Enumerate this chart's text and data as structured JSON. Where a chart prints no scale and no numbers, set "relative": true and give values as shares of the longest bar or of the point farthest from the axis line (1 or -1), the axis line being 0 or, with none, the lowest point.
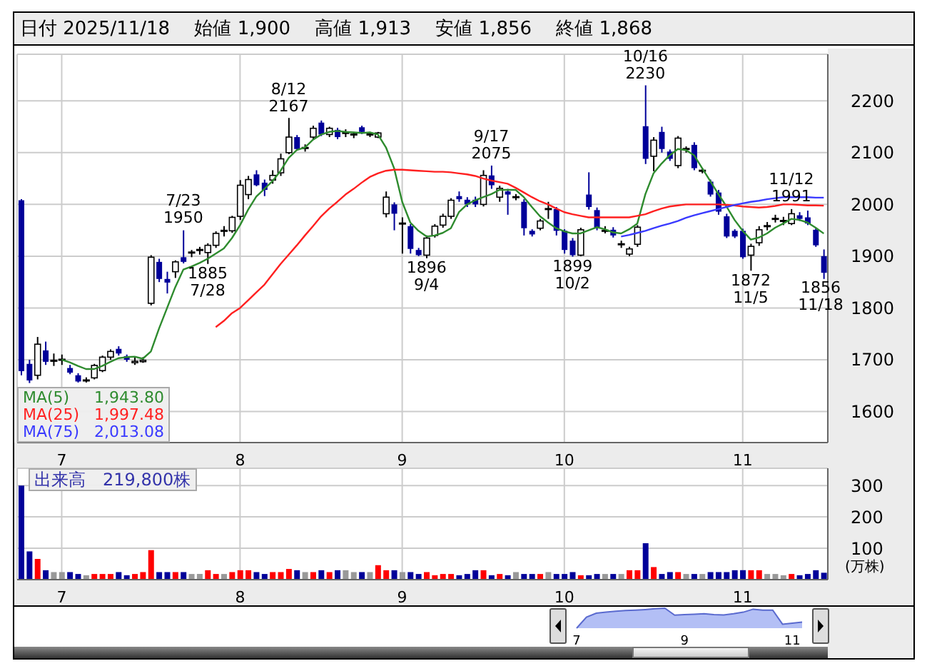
{
  "chart_data": [
    {
      "type": "candlestick",
      "title": "日付 2025/11/18　 始値 1,900　 高値 1,913　 安値 1,856　 終値 1,868",
      "colors": [
        "#000099",
        "#000099",
        "#ffffff",
        "#000099",
        "#000000",
        "#000000",
        "#000099",
        "#000099",
        "#000000",
        "#ffffff",
        "#ffffff",
        "#ffffff",
        "#000099",
        "#000099",
        "#ffffff",
        "#ffffff",
        "#ffffff",
        "#000099",
        "#000099",
        "#ffffff",
        "#000099",
        "#000000",
        "#000000",
        "#ffffff",
        "#ffffff",
        "#000000",
        "#ffffff",
        "#ffffff",
        "#ffffff",
        "#000099",
        "#000099",
        "#ffffff",
        "#ffffff",
        "#ffffff",
        "#000099",
        "#000000",
        "#ffffff",
        "#000099",
        "#ffffff",
        "#000099",
        "#000000",
        "#000000",
        "#000099",
        "#000000",
        "#ffffff",
        "#ffffff",
        "#000099",
        "#000000",
        "#000099",
        "#000099",
        "#ffffff",
        "#ffffff",
        "#ffffff",
        "#ffffff",
        "#000099",
        "#000099",
        "#000099",
        "#ffffff",
        "#000099",
        "#ffffff",
        "#000099",
        "#000000",
        "#000099",
        "#000099",
        "#ffffff",
        "#000000",
        "#000099",
        "#000099",
        "#000099",
        "#ffffff",
        "#000099",
        "#000099",
        "#000000",
        "#000099",
        "#000000",
        "#ffffff",
        "#ffffff",
        "#000099",
        "#ffffff",
        "#000099",
        "#000099",
        "#ffffff",
        "#000000",
        "#000099",
        "#000000",
        "#000099",
        "#000099",
        "#000099",
        "#000099",
        "#000099",
        "#ffffff",
        "#ffffff",
        "#000000",
        "#000000",
        "#000000",
        "#ffffff",
        "#000099",
        "#000099",
        "#000099",
        "#000099"
      ],
      "categories": [
        null,
        null,
        null,
        null,
        null,
        "7",
        null,
        null,
        null,
        null,
        null,
        null,
        null,
        null,
        null,
        null,
        null,
        null,
        null,
        null,
        null,
        null,
        null,
        null,
        null,
        null,
        null,
        "8",
        null,
        null,
        null,
        null,
        null,
        null,
        null,
        null,
        null,
        null,
        null,
        null,
        null,
        null,
        null,
        null,
        null,
        null,
        null,
        "9",
        null,
        null,
        null,
        null,
        null,
        null,
        null,
        null,
        null,
        null,
        null,
        null,
        null,
        null,
        null,
        null,
        null,
        null,
        null,
        "10",
        null,
        null,
        null,
        null,
        null,
        null,
        null,
        null,
        null,
        null,
        null,
        null,
        null,
        null,
        null,
        null,
        null,
        null,
        null,
        null,
        null,
        "11",
        null,
        null,
        null,
        null,
        null,
        null,
        null,
        null,
        null,
        null
      ],
      "ohlc": [
        [
          2008,
          2010,
          1670,
          1678
        ],
        [
          1692,
          1700,
          1655,
          1660
        ],
        [
          1670,
          1744,
          1662,
          1730
        ],
        [
          1718,
          1735,
          1690,
          1696
        ],
        [
          1698,
          1712,
          1688,
          1698
        ],
        [
          1700,
          1710,
          1690,
          1700
        ],
        [
          1684,
          1690,
          1672,
          1675
        ],
        [
          1670,
          1674,
          1656,
          1658
        ],
        [
          1660,
          1666,
          1656,
          1660
        ],
        [
          1665,
          1692,
          1662,
          1689
        ],
        [
          1679,
          1708,
          1676,
          1705
        ],
        [
          1705,
          1720,
          1700,
          1716
        ],
        [
          1721,
          1726,
          1708,
          1712
        ],
        [
          1707,
          1710,
          1696,
          1700
        ],
        [
          1696,
          1704,
          1690,
          1697
        ],
        [
          1698,
          1705,
          1694,
          1699
        ],
        [
          1809,
          1902,
          1805,
          1898
        ],
        [
          1889,
          1895,
          1850,
          1856
        ],
        [
          1856,
          1870,
          1828,
          1849
        ],
        [
          1870,
          1892,
          1858,
          1889
        ],
        [
          1898,
          1950,
          1886,
          1889
        ],
        [
          1907,
          1912,
          1898,
          1907
        ],
        [
          1912,
          1918,
          1903,
          1912
        ],
        [
          1907,
          1925,
          1885,
          1921
        ],
        [
          1921,
          1948,
          1916,
          1944
        ],
        [
          1949,
          1958,
          1938,
          1949
        ],
        [
          1949,
          1978,
          1945,
          1975
        ],
        [
          1977,
          2047,
          1970,
          2037
        ],
        [
          2019,
          2055,
          2010,
          2048
        ],
        [
          2058,
          2066,
          2035,
          2037
        ],
        [
          2042,
          2048,
          2016,
          2028
        ],
        [
          2047,
          2066,
          2040,
          2056
        ],
        [
          2061,
          2098,
          2055,
          2088
        ],
        [
          2100,
          2167,
          2097,
          2130
        ],
        [
          2130,
          2134,
          2104,
          2107
        ],
        [
          2109,
          2116,
          2102,
          2109
        ],
        [
          2130,
          2152,
          2126,
          2147
        ],
        [
          2158,
          2162,
          2132,
          2135
        ],
        [
          2135,
          2150,
          2130,
          2147
        ],
        [
          2144,
          2148,
          2126,
          2130
        ],
        [
          2138,
          2145,
          2130,
          2138
        ],
        [
          2135,
          2140,
          2128,
          2135
        ],
        [
          2149,
          2152,
          2136,
          2140
        ],
        [
          2135,
          2140,
          2130,
          2135
        ],
        [
          2130,
          2140,
          2128,
          2138
        ],
        [
          1982,
          2025,
          1975,
          2014
        ],
        [
          2000,
          2004,
          1950,
          1982
        ],
        [
          1963,
          1975,
          1905,
          1963
        ],
        [
          1958,
          1962,
          1905,
          1914
        ],
        [
          1912,
          1916,
          1900,
          1902
        ],
        [
          1902,
          1940,
          1896,
          1935
        ],
        [
          1940,
          1962,
          1936,
          1958
        ],
        [
          1960,
          1982,
          1955,
          1977
        ],
        [
          1977,
          2012,
          1972,
          2008
        ],
        [
          2016,
          2025,
          2005,
          2010
        ],
        [
          2009,
          2014,
          1995,
          2000
        ],
        [
          2009,
          2015,
          1995,
          2000
        ],
        [
          2000,
          2066,
          1996,
          2056
        ],
        [
          2056,
          2075,
          2030,
          2037
        ],
        [
          2014,
          2036,
          2005,
          2031
        ],
        [
          2025,
          2030,
          1980,
          2019
        ],
        [
          2014,
          2020,
          2008,
          2014
        ],
        [
          2005,
          2010,
          1940,
          1954
        ],
        [
          1949,
          1952,
          1938,
          1942
        ],
        [
          1954,
          1972,
          1950,
          1968
        ],
        [
          1991,
          2005,
          1972,
          1991
        ],
        [
          1991,
          1995,
          1940,
          1949
        ],
        [
          1949,
          1952,
          1905,
          1912
        ],
        [
          1930,
          1935,
          1899,
          1902
        ],
        [
          1902,
          1955,
          1900,
          1951
        ],
        [
          2019,
          2062,
          1990,
          1995
        ],
        [
          1989,
          1994,
          1950,
          1954
        ],
        [
          1949,
          1958,
          1944,
          1949
        ],
        [
          1951,
          1956,
          1936,
          1940
        ],
        [
          1923,
          1930,
          1916,
          1923
        ],
        [
          1904,
          1918,
          1900,
          1914
        ],
        [
          1923,
          1960,
          1918,
          1956
        ],
        [
          2151,
          2230,
          2078,
          2088
        ],
        [
          2093,
          2130,
          2064,
          2124
        ],
        [
          2140,
          2150,
          2100,
          2107
        ],
        [
          2102,
          2106,
          2084,
          2088
        ],
        [
          2075,
          2132,
          2070,
          2128
        ],
        [
          2107,
          2112,
          2100,
          2107
        ],
        [
          2115,
          2120,
          2066,
          2070
        ],
        [
          2065,
          2070,
          2060,
          2065
        ],
        [
          2044,
          2048,
          2015,
          2019
        ],
        [
          2023,
          2028,
          1980,
          1986
        ],
        [
          1977,
          1982,
          1935,
          1938
        ],
        [
          1949,
          1952,
          1935,
          1938
        ],
        [
          1949,
          1953,
          1895,
          1898
        ],
        [
          1902,
          1924,
          1872,
          1919
        ],
        [
          1926,
          1958,
          1920,
          1951
        ],
        [
          1958,
          1966,
          1950,
          1958
        ],
        [
          1972,
          1980,
          1965,
          1972
        ],
        [
          1968,
          1976,
          1960,
          1968
        ],
        [
          1963,
          1991,
          1960,
          1982
        ],
        [
          1979,
          1985,
          1968,
          1972
        ],
        [
          1975,
          1988,
          1960,
          1963
        ],
        [
          1951,
          1955,
          1918,
          1921
        ],
        [
          1900,
          1913,
          1856,
          1868
        ]
      ],
      "series": [
        {
          "name": "MA(5)",
          "type": "line",
          "color": "#2e8b2e",
          "values": [
            null,
            null,
            null,
            null,
            null,
            1700,
            1695,
            1688,
            1682,
            1682,
            1688,
            1696,
            1703,
            1705,
            1706,
            1702,
            1716,
            1760,
            1800,
            1840,
            1874,
            1880,
            1887,
            1895,
            1905,
            1915,
            1935,
            1960,
            1990,
            2015,
            2030,
            2045,
            2065,
            2090,
            2105,
            2110,
            2125,
            2135,
            2140,
            2142,
            2140,
            2139,
            2138,
            2139,
            2135,
            2110,
            2070,
            2005,
            1965,
            1949,
            1938,
            1940,
            1945,
            1954,
            1985,
            2000,
            2008,
            2014,
            2020,
            2028,
            2028,
            2028,
            2014,
            1995,
            1977,
            1965,
            1954,
            1948,
            1944,
            1944,
            1950,
            1956,
            1952,
            1946,
            1944,
            1952,
            1963,
            2020,
            2060,
            2079,
            2095,
            2107,
            2105,
            2095,
            2070,
            2045,
            2020,
            1996,
            1970,
            1949,
            1932,
            1936,
            1944,
            1955,
            1963,
            1972,
            1970,
            1965,
            1955,
            1943.8
          ]
        },
        {
          "name": "MA(25)",
          "type": "line",
          "color": "#ff2020",
          "values": [
            null,
            null,
            null,
            null,
            null,
            null,
            null,
            null,
            null,
            null,
            null,
            null,
            null,
            null,
            null,
            null,
            null,
            null,
            null,
            null,
            null,
            null,
            null,
            null,
            1763,
            1775,
            1790,
            1800,
            1815,
            1830,
            1845,
            1865,
            1885,
            1903,
            1921,
            1940,
            1958,
            1977,
            1992,
            2005,
            2019,
            2030,
            2042,
            2053,
            2060,
            2065,
            2067,
            2067,
            2066,
            2065,
            2064,
            2063,
            2063,
            2062,
            2060,
            2058,
            2055,
            2050,
            2046,
            2043,
            2040,
            2032,
            2023,
            2014,
            2006,
            2000,
            1992,
            1985,
            1981,
            1978,
            1975,
            1975,
            1975,
            1975,
            1975,
            1975,
            1978,
            1981,
            1987,
            1992,
            1996,
            1998,
            2000,
            2000,
            2000,
            2000,
            2000,
            1999,
            1998,
            1996,
            1995,
            1994,
            1995,
            1997,
            2000,
            2000,
            1999,
            1998,
            1998,
            1997.48
          ]
        },
        {
          "name": "MA(75)",
          "type": "line",
          "color": "#3a3aff",
          "values": [
            null,
            null,
            null,
            null,
            null,
            null,
            null,
            null,
            null,
            null,
            null,
            null,
            null,
            null,
            null,
            null,
            null,
            null,
            null,
            null,
            null,
            null,
            null,
            null,
            null,
            null,
            null,
            null,
            null,
            null,
            null,
            null,
            null,
            null,
            null,
            null,
            null,
            null,
            null,
            null,
            null,
            null,
            null,
            null,
            null,
            null,
            null,
            null,
            null,
            null,
            null,
            null,
            null,
            null,
            null,
            null,
            null,
            null,
            null,
            null,
            null,
            null,
            null,
            null,
            null,
            null,
            null,
            null,
            null,
            null,
            null,
            null,
            null,
            null,
            1938,
            1941,
            1945,
            1949,
            1954,
            1959,
            1963,
            1968,
            1974,
            1979,
            1983,
            1987,
            1991,
            1995,
            1999,
            2002,
            2005,
            2007,
            2010,
            2012,
            2014,
            2014,
            2014,
            2014,
            2013,
            2013.08
          ]
        }
      ],
      "ylim": [
        1540,
        2290
      ],
      "yticks": [
        1600,
        1700,
        1800,
        1900,
        2000,
        2100,
        2200
      ],
      "grid": true,
      "legend": "bottom left",
      "annotations": [
        "1,943.80",
        "1,997.48",
        "2,013.08",
        {
          "text": "7/23\n1950",
          "y": 1950
        },
        {
          "text": "1885\n7/28",
          "y": 1885
        },
        {
          "text": "8/12\n2167",
          "y": 2167
        },
        {
          "text": "1896\n9/4",
          "y": 1896
        },
        {
          "text": "9/17\n2075",
          "y": 2075
        },
        {
          "text": "1899\n10/2",
          "y": 1899
        },
        {
          "text": "10/16\n2230",
          "y": 2230
        },
        {
          "text": "1872\n11/5",
          "y": 1872
        },
        {
          "text": "11/12\n1991",
          "y": 1991
        },
        {
          "text": "1856\n11/18",
          "y": 1856
        }
      ]
    },
    {
      "type": "bar",
      "title": "出来高　219,800株",
      "ylabel": "(万株)",
      "categories": [
        null,
        null,
        null,
        null,
        null,
        "7",
        null,
        null,
        null,
        null,
        null,
        null,
        null,
        null,
        null,
        null,
        null,
        null,
        null,
        null,
        null,
        null,
        null,
        null,
        null,
        null,
        null,
        "8",
        null,
        null,
        null,
        null,
        null,
        null,
        null,
        null,
        null,
        null,
        null,
        null,
        null,
        null,
        null,
        null,
        null,
        null,
        null,
        "9",
        null,
        null,
        null,
        null,
        null,
        null,
        null,
        null,
        null,
        null,
        null,
        null,
        null,
        null,
        null,
        null,
        null,
        null,
        null,
        "10",
        null,
        null,
        null,
        null,
        null,
        null,
        null,
        null,
        null,
        null,
        null,
        null,
        null,
        null,
        null,
        null,
        null,
        null,
        null,
        null,
        null,
        "11",
        null,
        null,
        null,
        null,
        null,
        null,
        null,
        null,
        null,
        null
      ],
      "values": [
        300,
        90,
        66,
        30,
        24,
        24,
        24,
        18,
        14,
        18,
        18,
        18,
        24,
        14,
        18,
        24,
        94,
        24,
        24,
        24,
        24,
        18,
        18,
        30,
        18,
        18,
        24,
        30,
        30,
        24,
        18,
        24,
        24,
        34,
        30,
        24,
        24,
        30,
        24,
        30,
        30,
        24,
        24,
        24,
        46,
        30,
        30,
        24,
        24,
        18,
        24,
        14,
        18,
        18,
        14,
        18,
        30,
        30,
        14,
        18,
        14,
        24,
        18,
        18,
        18,
        24,
        18,
        18,
        24,
        14,
        14,
        18,
        18,
        18,
        18,
        30,
        30,
        116,
        40,
        18,
        24,
        24,
        18,
        18,
        18,
        24,
        24,
        24,
        30,
        30,
        30,
        30,
        18,
        18,
        14,
        18,
        14,
        18,
        30,
        21.98
      ],
      "colors": [
        "#000099",
        "#000099",
        "#ff0000",
        "#000099",
        "#999999",
        "#999999",
        "#000099",
        "#000099",
        "#999999",
        "#ff0000",
        "#ff0000",
        "#ff0000",
        "#000099",
        "#000099",
        "#ff0000",
        "#ff0000",
        "#ff0000",
        "#000099",
        "#000099",
        "#ff0000",
        "#000099",
        "#999999",
        "#999999",
        "#ff0000",
        "#ff0000",
        "#999999",
        "#ff0000",
        "#ff0000",
        "#ff0000",
        "#000099",
        "#000099",
        "#ff0000",
        "#ff0000",
        "#ff0000",
        "#000099",
        "#999999",
        "#ff0000",
        "#000099",
        "#ff0000",
        "#000099",
        "#999999",
        "#999999",
        "#000099",
        "#999999",
        "#ff0000",
        "#ff0000",
        "#000099",
        "#999999",
        "#000099",
        "#000099",
        "#ff0000",
        "#ff0000",
        "#ff0000",
        "#ff0000",
        "#000099",
        "#000099",
        "#000099",
        "#ff0000",
        "#000099",
        "#ff0000",
        "#000099",
        "#999999",
        "#000099",
        "#000099",
        "#ff0000",
        "#999999",
        "#000099",
        "#000099",
        "#000099",
        "#ff0000",
        "#000099",
        "#000099",
        "#999999",
        "#000099",
        "#999999",
        "#ff0000",
        "#ff0000",
        "#000099",
        "#ff0000",
        "#000099",
        "#000099",
        "#ff0000",
        "#999999",
        "#000099",
        "#999999",
        "#000099",
        "#000099",
        "#000099",
        "#000099",
        "#000099",
        "#ff0000",
        "#ff0000",
        "#999999",
        "#999999",
        "#999999",
        "#ff0000",
        "#000099",
        "#000099",
        "#000099",
        "#000099"
      ],
      "ylim": [
        0,
        355
      ],
      "yticks": [
        100,
        200,
        300
      ],
      "grid": true
    },
    {
      "type": "area",
      "relative": true,
      "color": "#b3bff5",
      "categories": [
        "7",
        null,
        null,
        null,
        null,
        null,
        null,
        null,
        null,
        null,
        null,
        "9",
        null,
        null,
        null,
        null,
        null,
        null,
        null,
        null,
        null,
        null,
        "11",
        null
      ],
      "values": [
        0,
        0.55,
        0.75,
        0.8,
        0.85,
        0.88,
        0.9,
        0.93,
        0.97,
        1,
        0.65,
        0.68,
        0.7,
        0.72,
        0.68,
        0.66,
        0.72,
        0.8,
        0.95,
        0.9,
        0.9,
        0.2,
        0.25,
        0.3
      ]
    }
  ]
}
